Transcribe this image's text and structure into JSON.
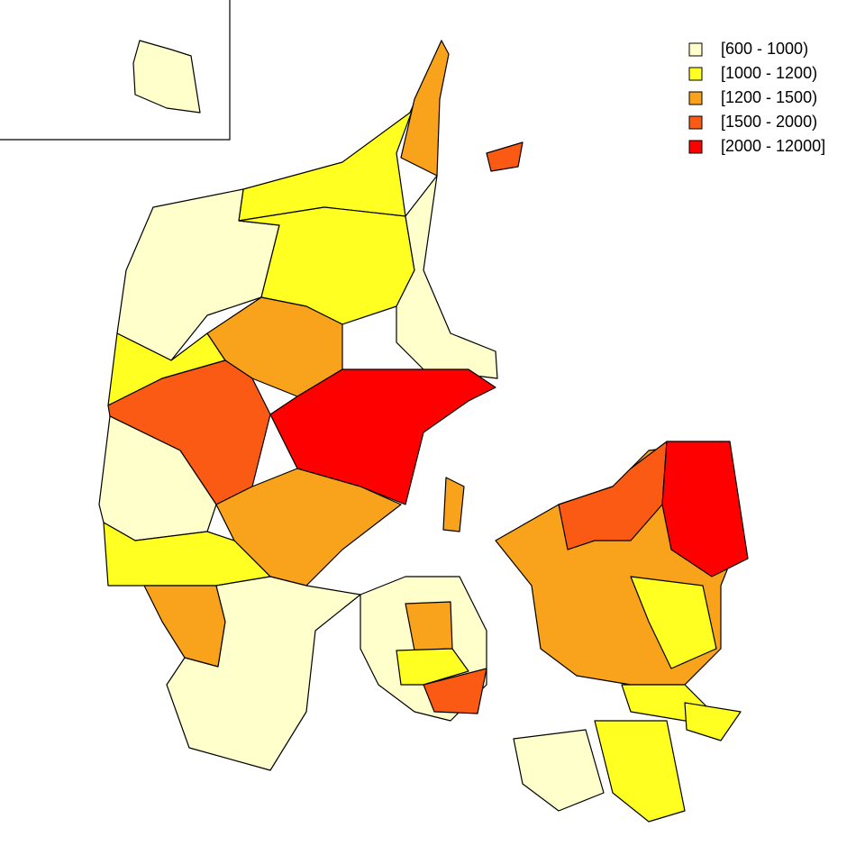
{
  "legend": {
    "items": [
      {
        "label": "[600 - 1000)",
        "color": "#ffffcc"
      },
      {
        "label": "[1000 - 1200)",
        "color": "#ffff22"
      },
      {
        "label": "[1200 - 1500)",
        "color": "#f9a21c"
      },
      {
        "label": "[1500 - 2000)",
        "color": "#fb5a14"
      },
      {
        "label": "[2000 - 12000]",
        "color": "#ff0000"
      }
    ]
  }
}
